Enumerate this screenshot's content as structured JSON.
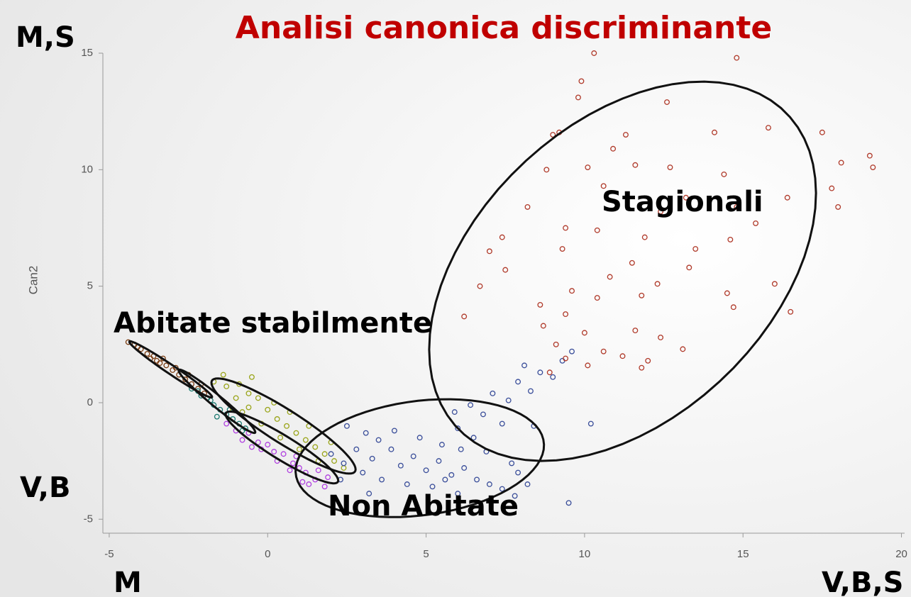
{
  "chart_data": {
    "type": "scatter",
    "title": "Analisi canonica discriminante",
    "ylabel": "Can2",
    "annotations": [
      "M,S",
      "V,B",
      "M",
      "V,B,S",
      "Stagionali",
      "Abitate stabilmente",
      "Non Abitate"
    ],
    "xlim": [
      -5.2,
      20.1
    ],
    "ylim": [
      -5.6,
      15
    ],
    "xticks": [
      -5,
      0,
      5,
      10,
      15,
      20
    ],
    "yticks": [
      -5,
      0,
      5,
      10,
      15
    ],
    "series": [
      {
        "color": "#7a3b10",
        "x": [
          -4.4,
          -4.2,
          -4.0,
          -3.8,
          -3.6,
          -3.4,
          -3.2,
          -3.0,
          -2.8,
          -2.6,
          -2.4,
          -2.2,
          -2.0,
          -3.7,
          -3.3,
          -2.9,
          -2.5,
          -2.1,
          -4.1,
          -3.5
        ],
        "y": [
          2.6,
          2.5,
          2.3,
          2.1,
          2.0,
          1.7,
          1.6,
          1.4,
          1.2,
          1.0,
          0.8,
          0.6,
          0.4,
          1.9,
          1.9,
          1.5,
          1.2,
          0.8,
          2.4,
          1.8
        ]
      },
      {
        "color": "#9aa51a",
        "x": [
          -1.7,
          -1.3,
          -0.9,
          -0.6,
          -1.0,
          -0.3,
          -0.6,
          0.0,
          0.3,
          -0.2,
          0.6,
          0.9,
          0.4,
          1.2,
          1.5,
          1.0,
          1.8,
          2.1,
          1.6,
          2.4,
          -1.4,
          -0.5,
          -0.8,
          0.7,
          1.3,
          2.0,
          0.2,
          -1.1
        ],
        "y": [
          0.9,
          0.7,
          0.8,
          0.4,
          0.2,
          0.2,
          -0.2,
          -0.3,
          -0.7,
          -0.9,
          -1.0,
          -1.3,
          -1.5,
          -1.6,
          -1.9,
          -2.0,
          -2.2,
          -2.5,
          -2.5,
          -2.8,
          1.2,
          1.1,
          -0.4,
          -0.4,
          -1.0,
          -1.7,
          0.0,
          -0.3
        ]
      },
      {
        "color": "#1a7a70",
        "x": [
          -2.4,
          -2.1,
          -1.9,
          -1.7,
          -1.5,
          -1.3,
          -1.1,
          -0.9,
          -0.7,
          -1.8,
          -1.2,
          -2.2,
          -1.6,
          -0.8
        ],
        "y": [
          0.6,
          0.3,
          0.2,
          -0.1,
          -0.3,
          -0.5,
          -0.7,
          -0.9,
          -1.1,
          0.1,
          -0.3,
          0.5,
          -0.6,
          -1.2
        ]
      },
      {
        "color": "#b040e0",
        "x": [
          -1.3,
          -1.0,
          -0.6,
          -0.8,
          -0.3,
          0.0,
          0.2,
          0.5,
          0.3,
          0.8,
          1.0,
          1.2,
          1.5,
          1.8,
          1.3,
          0.7,
          -0.2,
          1.6,
          1.9,
          0.9,
          -0.5,
          1.1
        ],
        "y": [
          -0.9,
          -1.2,
          -1.3,
          -1.6,
          -1.7,
          -1.8,
          -2.1,
          -2.2,
          -2.5,
          -2.6,
          -2.8,
          -3.0,
          -3.3,
          -3.6,
          -3.5,
          -2.9,
          -2.0,
          -2.9,
          -3.2,
          -2.3,
          -1.9,
          -3.4
        ]
      },
      {
        "color": "#3a4e9a",
        "x": [
          2.5,
          3.1,
          3.5,
          2.8,
          3.3,
          3.9,
          4.2,
          4.6,
          5.0,
          5.4,
          5.8,
          6.2,
          6.6,
          7.0,
          7.4,
          7.8,
          3.0,
          2.4,
          2.0,
          3.6,
          4.4,
          5.2,
          6.0,
          4.8,
          5.5,
          6.0,
          5.9,
          6.4,
          6.8,
          7.1,
          7.6,
          7.9,
          8.3,
          8.6,
          9.0,
          9.3,
          9.6,
          8.1,
          7.4,
          8.4,
          6.9,
          7.7,
          8.2,
          9.5,
          10.2,
          6.1,
          4.0,
          6.5,
          7.9,
          2.3,
          3.2,
          5.6
        ],
        "y": [
          -1.0,
          -1.3,
          -1.6,
          -2.0,
          -2.4,
          -2.0,
          -2.7,
          -2.3,
          -2.9,
          -2.5,
          -3.1,
          -2.8,
          -3.3,
          -3.5,
          -3.7,
          -4.0,
          -3.0,
          -2.6,
          -2.2,
          -3.3,
          -3.5,
          -3.6,
          -3.9,
          -1.5,
          -1.8,
          -1.1,
          -0.4,
          -0.1,
          -0.5,
          0.4,
          0.1,
          0.9,
          0.5,
          1.3,
          1.1,
          1.8,
          2.2,
          1.6,
          -0.9,
          -1.0,
          -2.1,
          -2.6,
          -3.5,
          -4.3,
          -0.9,
          -2.0,
          -1.2,
          -1.5,
          -3.0,
          -3.3,
          -3.9,
          -3.3
        ]
      },
      {
        "color": "#b03a2a",
        "x": [
          10.3,
          14.8,
          9.9,
          9.8,
          12.6,
          9.2,
          9.0,
          10.9,
          15.8,
          17.5,
          14.1,
          11.3,
          19.0,
          19.1,
          18.1,
          11.6,
          10.1,
          8.8,
          12.7,
          14.4,
          10.6,
          13.2,
          16.4,
          17.8,
          18.0,
          14.8,
          8.2,
          12.4,
          15.4,
          10.4,
          11.9,
          14.6,
          7.4,
          9.4,
          13.5,
          9.3,
          7.0,
          11.5,
          13.3,
          7.5,
          10.8,
          12.3,
          9.6,
          16.0,
          14.5,
          6.7,
          10.4,
          11.8,
          8.6,
          6.2,
          9.4,
          16.5,
          14.7,
          8.7,
          10.0,
          11.6,
          12.4,
          9.1,
          10.6,
          13.1,
          11.2,
          12.0,
          9.4,
          10.1,
          11.8,
          8.9
        ],
        "y": [
          15,
          14.8,
          13.8,
          13.1,
          12.9,
          11.6,
          11.5,
          10.9,
          11.8,
          11.6,
          11.6,
          11.5,
          10.6,
          10.1,
          10.3,
          10.2,
          10.1,
          10.0,
          10.1,
          9.8,
          9.3,
          8.8,
          8.8,
          9.2,
          8.4,
          8.4,
          8.4,
          8.2,
          7.7,
          7.4,
          7.1,
          7.0,
          7.1,
          7.5,
          6.6,
          6.6,
          6.5,
          6.0,
          5.8,
          5.7,
          5.4,
          5.1,
          4.8,
          5.1,
          4.7,
          5.0,
          4.5,
          4.6,
          4.2,
          3.7,
          3.8,
          3.9,
          4.1,
          3.3,
          3.0,
          3.1,
          2.8,
          2.5,
          2.2,
          2.3,
          2.0,
          1.8,
          1.9,
          1.6,
          1.5,
          1.3
        ]
      }
    ],
    "ellipses": [
      {
        "center": [
          11.2,
          5.64
        ],
        "u": [
          3.5,
          8.0
        ],
        "v": [
          5.0,
          -1.5
        ]
      },
      {
        "center": [
          4.8,
          -2.38
        ],
        "u": [
          3.9,
          0.8
        ],
        "v": [
          -0.4,
          2.4
        ]
      },
      {
        "center": [
          0.5,
          -1.0
        ],
        "u": [
          2.24,
          -1.98
        ],
        "v": [
          0.4,
          0.5
        ]
      },
      {
        "center": [
          0.45,
          -1.92
        ],
        "u": [
          1.75,
          -1.5
        ],
        "v": [
          0.3,
          0.35
        ]
      },
      {
        "center": [
          -1.6,
          0.06
        ],
        "u": [
          1.2,
          -1.35
        ],
        "v": [
          0.15,
          0.15
        ]
      },
      {
        "center": [
          -3.06,
          1.43
        ],
        "u": [
          1.3,
          -1.2
        ],
        "v": [
          0.12,
          0.12
        ]
      }
    ]
  }
}
